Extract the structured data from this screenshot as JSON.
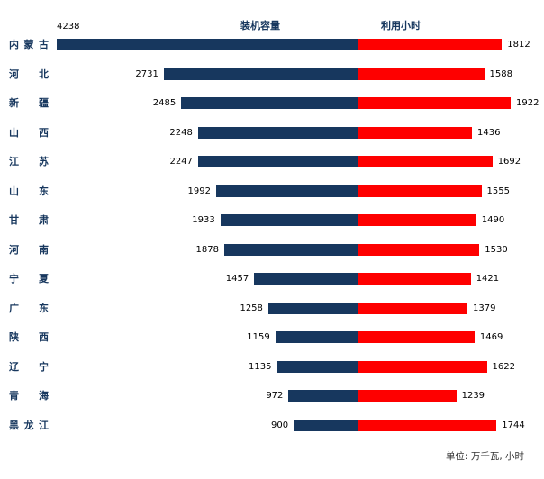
{
  "header": {
    "left_series_label": "装机容量",
    "right_series_label": "利用小时"
  },
  "footer": {
    "unit_note": "单位: 万千瓦, 小时"
  },
  "colors": {
    "left_bar": "#17375E",
    "right_bar": "#FE0000"
  },
  "chart_data": {
    "type": "bar",
    "subtype": "tornado",
    "orientation": "horizontal",
    "categories": [
      "内蒙古",
      "河北",
      "新疆",
      "山西",
      "江苏",
      "山东",
      "甘肃",
      "河南",
      "宁夏",
      "广东",
      "陕西",
      "辽宁",
      "青海",
      "黑龙江"
    ],
    "series": [
      {
        "name": "装机容量",
        "color": "#17375E",
        "direction": "left",
        "values": [
          4238,
          2731,
          2485,
          2248,
          2247,
          1992,
          1933,
          1878,
          1457,
          1258,
          1159,
          1135,
          972,
          900
        ]
      },
      {
        "name": "利用小时",
        "color": "#FE0000",
        "direction": "right",
        "values": [
          1812,
          1588,
          1922,
          1436,
          1692,
          1555,
          1490,
          1530,
          1421,
          1379,
          1469,
          1622,
          1239,
          1744
        ]
      }
    ],
    "title": "",
    "xlabel": "",
    "ylabel": "",
    "unit": "万千瓦, 小时",
    "data_labels": true,
    "grid": false,
    "legend_position": "top"
  }
}
